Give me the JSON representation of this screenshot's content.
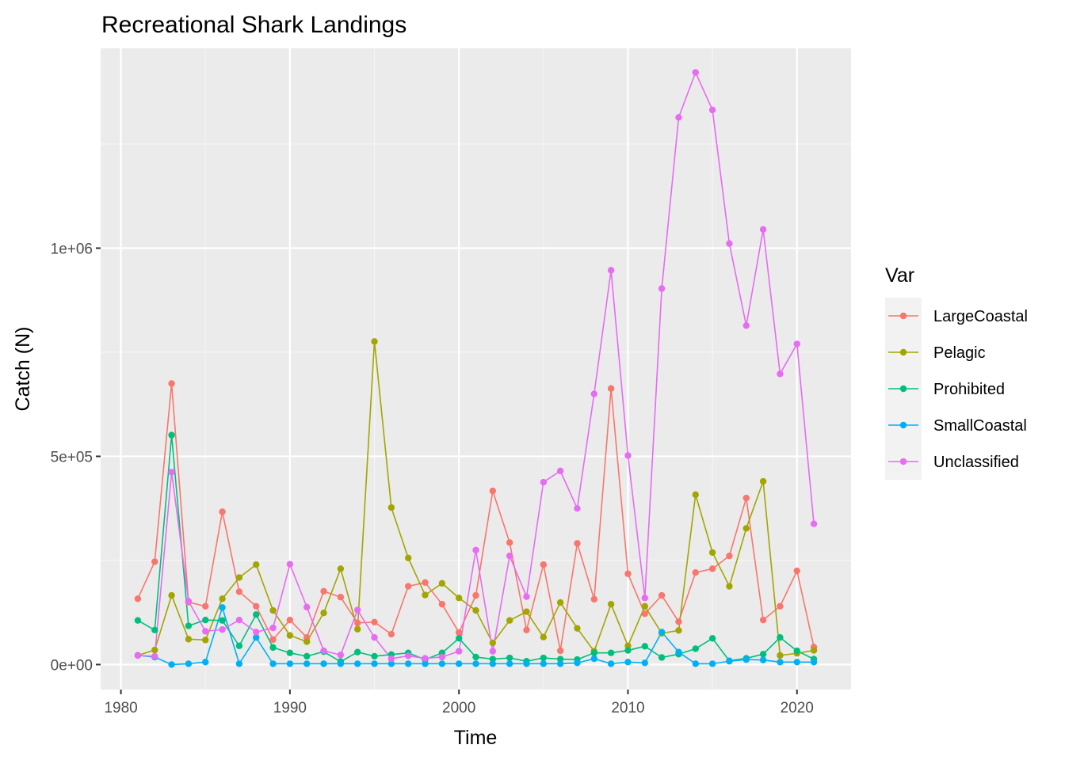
{
  "chart_data": {
    "type": "line",
    "title": "Recreational Shark Landings",
    "xlabel": "Time",
    "ylabel": "Catch (N)",
    "xlim": [
      1978.8,
      2023.2
    ],
    "ylim": [
      -60000,
      1480000
    ],
    "x_ticks": [
      1980,
      1990,
      2000,
      2010,
      2020
    ],
    "x_tick_labels": [
      "1980",
      "1990",
      "2000",
      "2010",
      "2020"
    ],
    "y_ticks": [
      0,
      500000,
      1000000
    ],
    "y_tick_labels": [
      "0e+00",
      "5e+05",
      "1e+06"
    ],
    "grid": true,
    "legend": {
      "title": "Var",
      "position": "right"
    },
    "x": [
      1981,
      1982,
      1983,
      1984,
      1985,
      1986,
      1987,
      1988,
      1989,
      1990,
      1991,
      1992,
      1993,
      1994,
      1995,
      1996,
      1997,
      1998,
      1999,
      2000,
      2001,
      2002,
      2003,
      2004,
      2005,
      2006,
      2007,
      2008,
      2009,
      2010,
      2011,
      2012,
      2013,
      2014,
      2015,
      2016,
      2017,
      2018,
      2019,
      2020,
      2021
    ],
    "series": [
      {
        "name": "LargeCoastal",
        "color": "#F8766D",
        "values": [
          158000,
          247000,
          675000,
          150000,
          140000,
          367000,
          175000,
          140000,
          60000,
          107000,
          65000,
          176000,
          162000,
          100000,
          102000,
          73000,
          188000,
          197000,
          145000,
          77000,
          166000,
          417000,
          293000,
          83000,
          240000,
          33000,
          291000,
          157000,
          663000,
          218000,
          122000,
          166000,
          103000,
          221000,
          230000,
          261000,
          400000,
          107000,
          140000,
          225000,
          42000
        ]
      },
      {
        "name": "Pelagic",
        "color": "#A3A500",
        "values": [
          22000,
          35000,
          166000,
          61000,
          59000,
          158000,
          209000,
          240000,
          130000,
          70000,
          55000,
          124000,
          230000,
          85000,
          776000,
          377000,
          256000,
          167000,
          195000,
          160000,
          130000,
          52000,
          106000,
          127000,
          66000,
          149000,
          87000,
          32000,
          145000,
          45000,
          140000,
          75000,
          82000,
          408000,
          269000,
          188000,
          327000,
          440000,
          22000,
          27000,
          34000
        ]
      },
      {
        "name": "Prohibited",
        "color": "#00BF7D",
        "values": [
          106000,
          83000,
          551000,
          93000,
          107000,
          106000,
          45000,
          120000,
          41000,
          28000,
          20000,
          31000,
          7000,
          30000,
          20000,
          24000,
          28000,
          12000,
          28000,
          63000,
          18000,
          13000,
          16000,
          8000,
          16000,
          13000,
          12000,
          28000,
          28000,
          34000,
          44000,
          17000,
          25000,
          38000,
          63000,
          9000,
          15000,
          25000,
          65000,
          33000,
          13000
        ]
      },
      {
        "name": "SmallCoastal",
        "color": "#00B0F6",
        "values": [
          22000,
          18000,
          0,
          2000,
          6000,
          137000,
          2000,
          65000,
          2000,
          2000,
          2000,
          2000,
          2000,
          2000,
          2000,
          2000,
          2000,
          2000,
          2000,
          2000,
          2000,
          2000,
          2000,
          2000,
          2000,
          2000,
          4000,
          14000,
          2000,
          6000,
          4000,
          78000,
          30000,
          2000,
          2000,
          8000,
          12000,
          11000,
          6000,
          6000,
          6000
        ]
      },
      {
        "name": "Unclassified",
        "color": "#E76BF3",
        "values": [
          22000,
          20000,
          462000,
          152000,
          80000,
          84000,
          107000,
          78000,
          88000,
          241000,
          138000,
          33000,
          23000,
          131000,
          65000,
          14000,
          21000,
          15000,
          18000,
          32000,
          275000,
          32000,
          261000,
          163000,
          438000,
          465000,
          375000,
          650000,
          947000,
          502000,
          160000,
          903000,
          1314000,
          1422000,
          1332000,
          1011000,
          814000,
          1045000,
          698000,
          770000,
          338000
        ]
      }
    ]
  }
}
